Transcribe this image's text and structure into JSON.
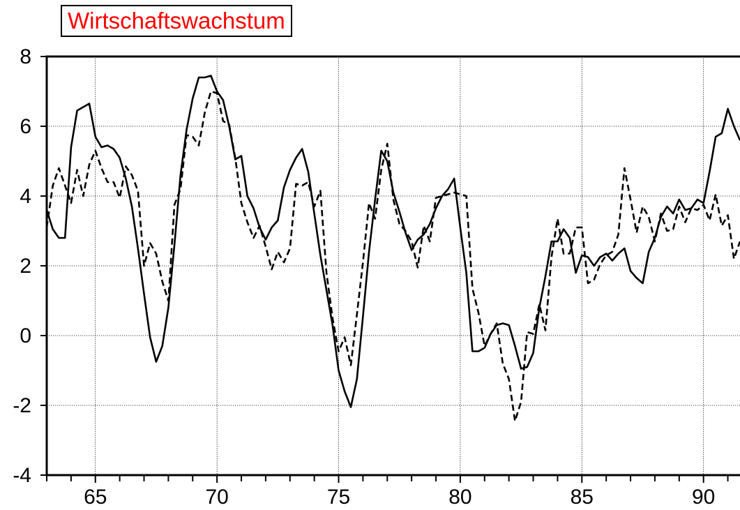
{
  "chart_data": {
    "type": "line",
    "title": "Wirtschaftswachstum",
    "title_color": "#ff0000",
    "xlabel": "",
    "ylabel": "",
    "xlim": [
      63,
      91.5
    ],
    "ylim": [
      -4,
      8
    ],
    "x_ticks": [
      65,
      70,
      75,
      80,
      85,
      90
    ],
    "y_ticks": [
      -4,
      -2,
      0,
      2,
      4,
      6,
      8
    ],
    "grid": true,
    "legend": "none",
    "series": [
      {
        "style": "solid",
        "color": "#000000",
        "x": [
          63.0,
          63.25,
          63.5,
          63.75,
          64.0,
          64.25,
          64.5,
          64.75,
          65.0,
          65.25,
          65.5,
          65.75,
          66.0,
          66.25,
          66.5,
          66.75,
          67.0,
          67.25,
          67.5,
          67.75,
          68.0,
          68.25,
          68.5,
          68.75,
          69.0,
          69.25,
          69.5,
          69.75,
          70.0,
          70.25,
          70.5,
          70.75,
          71.0,
          71.25,
          71.5,
          71.75,
          72.0,
          72.25,
          72.5,
          72.75,
          73.0,
          73.25,
          73.5,
          73.75,
          74.0,
          74.25,
          74.5,
          74.75,
          75.0,
          75.25,
          75.5,
          75.75,
          76.0,
          76.25,
          76.5,
          76.75,
          77.0,
          77.25,
          77.5,
          77.75,
          78.0,
          78.25,
          78.5,
          78.75,
          79.0,
          79.25,
          79.5,
          79.75,
          80.0,
          80.25,
          80.5,
          80.75,
          81.0,
          81.25,
          81.5,
          81.75,
          82.0,
          82.25,
          82.5,
          82.75,
          83.0,
          83.25,
          83.5,
          83.75,
          84.0,
          84.25,
          84.5,
          84.75,
          85.0,
          85.25,
          85.5,
          85.75,
          86.0,
          86.25,
          86.5,
          86.75,
          87.0,
          87.25,
          87.5,
          87.75,
          88.0,
          88.25,
          88.5,
          88.75,
          89.0,
          89.25,
          89.5,
          89.75,
          90.0,
          90.25,
          90.5,
          90.75,
          91.0,
          91.25,
          91.5
        ],
        "y": [
          3.6,
          3.05,
          2.8,
          2.8,
          5.4,
          6.45,
          6.55,
          6.65,
          5.7,
          5.4,
          5.45,
          5.35,
          5.1,
          4.5,
          3.7,
          2.5,
          1.2,
          -0.05,
          -0.75,
          -0.3,
          0.8,
          2.6,
          4.6,
          5.9,
          6.8,
          7.4,
          7.4,
          7.45,
          7.0,
          6.75,
          6.0,
          5.05,
          5.15,
          4.0,
          3.65,
          3.1,
          2.75,
          3.1,
          3.3,
          4.25,
          4.75,
          5.1,
          5.35,
          4.7,
          3.5,
          2.3,
          1.3,
          0.3,
          -1.0,
          -1.6,
          -2.05,
          -1.25,
          0.55,
          2.4,
          3.9,
          5.3,
          5.0,
          4.1,
          3.55,
          2.95,
          2.45,
          2.75,
          2.9,
          3.2,
          3.65,
          4.0,
          4.2,
          4.5,
          3.1,
          1.8,
          -0.45,
          -0.45,
          -0.35,
          0.05,
          0.3,
          0.35,
          0.3,
          -0.3,
          -0.95,
          -0.9,
          -0.5,
          0.8,
          1.7,
          2.7,
          2.7,
          3.05,
          2.8,
          1.8,
          2.3,
          2.25,
          2.0,
          2.25,
          2.35,
          2.15,
          2.35,
          2.5,
          1.85,
          1.65,
          1.5,
          2.4,
          2.8,
          3.4,
          3.7,
          3.5,
          3.9,
          3.6,
          3.65,
          3.9,
          3.8,
          4.7,
          5.7,
          5.8,
          6.5,
          6.0,
          5.6
        ]
      },
      {
        "style": "dashed",
        "color": "#000000",
        "x": [
          63.0,
          63.25,
          63.5,
          63.75,
          64.0,
          64.25,
          64.5,
          64.75,
          65.0,
          65.25,
          65.5,
          65.75,
          66.0,
          66.25,
          66.5,
          66.75,
          67.0,
          67.25,
          67.5,
          67.75,
          68.0,
          68.25,
          68.5,
          68.75,
          69.0,
          69.25,
          69.5,
          69.75,
          70.0,
          70.25,
          70.5,
          70.75,
          71.0,
          71.25,
          71.5,
          71.75,
          72.0,
          72.25,
          72.5,
          72.75,
          73.0,
          73.25,
          73.5,
          73.75,
          74.0,
          74.25,
          74.5,
          74.75,
          75.0,
          75.25,
          75.5,
          75.75,
          76.0,
          76.25,
          76.5,
          76.75,
          77.0,
          77.25,
          77.5,
          77.75,
          78.0,
          78.25,
          78.5,
          78.75,
          79.0,
          79.25,
          79.5,
          79.75,
          80.0,
          80.25,
          80.5,
          80.75,
          81.0,
          81.25,
          81.5,
          81.75,
          82.0,
          82.25,
          82.5,
          82.75,
          83.0,
          83.25,
          83.5,
          83.75,
          84.0,
          84.25,
          84.5,
          84.75,
          85.0,
          85.25,
          85.5,
          85.75,
          86.0,
          86.25,
          86.5,
          86.75,
          87.0,
          87.25,
          87.5,
          87.75,
          88.0,
          88.25,
          88.5,
          88.75,
          89.0,
          89.25,
          89.5,
          89.75,
          90.0,
          90.25,
          90.5,
          90.75,
          91.0,
          91.25,
          91.5
        ],
        "y": [
          3.1,
          4.3,
          4.8,
          4.3,
          3.8,
          4.75,
          4.0,
          4.9,
          5.3,
          4.8,
          4.4,
          4.4,
          3.95,
          4.85,
          4.6,
          4.15,
          2.0,
          2.65,
          2.35,
          1.55,
          1.0,
          3.75,
          4.2,
          5.75,
          5.7,
          5.45,
          6.4,
          7.0,
          6.95,
          6.15,
          6.05,
          5.1,
          3.8,
          3.25,
          2.8,
          3.15,
          2.55,
          1.9,
          2.4,
          2.1,
          2.5,
          4.35,
          4.3,
          4.4,
          3.7,
          4.15,
          1.8,
          0.5,
          -0.45,
          -0.05,
          -0.85,
          0.6,
          2.1,
          3.8,
          3.35,
          4.75,
          5.5,
          3.9,
          3.2,
          3.0,
          2.7,
          1.95,
          3.15,
          2.7,
          3.95,
          4.0,
          4.05,
          4.1,
          4.05,
          4.0,
          1.35,
          0.65,
          -0.3,
          0.05,
          0.35,
          -0.8,
          -1.25,
          -2.45,
          -1.9,
          0.1,
          0.05,
          0.9,
          0.15,
          2.25,
          3.35,
          2.35,
          2.35,
          3.1,
          3.1,
          1.5,
          1.6,
          2.05,
          2.3,
          2.4,
          2.9,
          4.8,
          3.9,
          2.95,
          3.7,
          3.4,
          2.7,
          3.5,
          3.0,
          3.05,
          3.7,
          3.25,
          3.65,
          3.6,
          3.75,
          3.3,
          4.05,
          3.15,
          3.45,
          2.2,
          2.7
        ]
      }
    ]
  }
}
